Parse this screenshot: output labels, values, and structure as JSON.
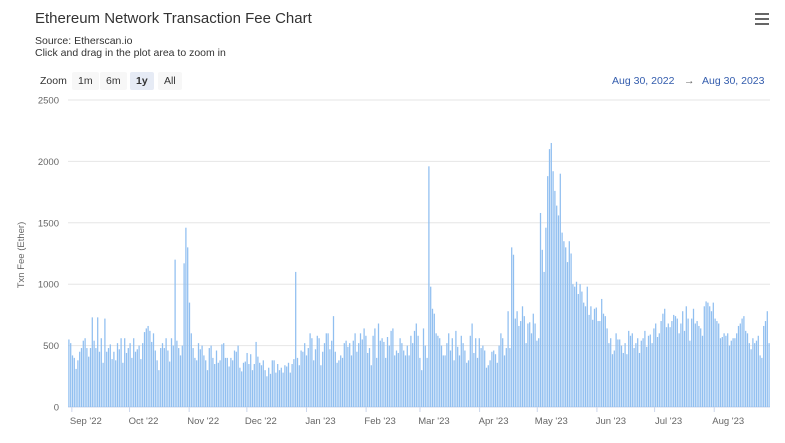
{
  "title": "Ethereum Network Transaction Fee Chart",
  "source": "Source: Etherscan.io",
  "hint": "Click and drag in the plot area to zoom in",
  "menu_icon": "hamburger-menu-icon",
  "zoom": {
    "label": "Zoom",
    "buttons": [
      {
        "label": "1m",
        "active": false
      },
      {
        "label": "6m",
        "active": false
      },
      {
        "label": "1y",
        "active": true
      },
      {
        "label": "All",
        "active": false
      }
    ]
  },
  "range": {
    "from": "Aug 30, 2022",
    "arrow": "→",
    "to": "Aug 30, 2023"
  },
  "colors": {
    "bar": "#90bff0",
    "grid": "#e6e6e6",
    "accent": "#335cad"
  },
  "chart_data": {
    "type": "bar",
    "ylabel": "Txn Fee (Ether)",
    "ylim": [
      0,
      2500
    ],
    "yticks": [
      0,
      500,
      1000,
      1500,
      2000,
      2500
    ],
    "xlim": [
      "2022-08-30",
      "2023-08-30"
    ],
    "xticks": [
      {
        "label": "Sep '22",
        "date": "2022-09-01"
      },
      {
        "label": "Oct '22",
        "date": "2022-10-01"
      },
      {
        "label": "Nov '22",
        "date": "2022-11-01"
      },
      {
        "label": "Dec '22",
        "date": "2022-12-01"
      },
      {
        "label": "Jan '23",
        "date": "2023-01-01"
      },
      {
        "label": "Feb '23",
        "date": "2023-02-01"
      },
      {
        "label": "Mar '23",
        "date": "2023-03-01"
      },
      {
        "label": "Apr '23",
        "date": "2023-04-01"
      },
      {
        "label": "May '23",
        "date": "2023-05-01"
      },
      {
        "label": "Jun '23",
        "date": "2023-06-01"
      },
      {
        "label": "Jul '23",
        "date": "2023-07-01"
      },
      {
        "label": "Aug '23",
        "date": "2023-08-01"
      }
    ],
    "start_date": "2022-08-30",
    "values": [
      550,
      520,
      420,
      400,
      310,
      380,
      450,
      480,
      540,
      560,
      480,
      410,
      480,
      730,
      540,
      480,
      730,
      450,
      560,
      360,
      720,
      450,
      480,
      510,
      390,
      450,
      380,
      520,
      470,
      560,
      360,
      560,
      440,
      480,
      520,
      400,
      560,
      450,
      470,
      500,
      390,
      520,
      610,
      640,
      660,
      620,
      530,
      600,
      460,
      380,
      300,
      480,
      520,
      480,
      560,
      460,
      370,
      560,
      500,
      1200,
      540,
      480,
      420,
      500,
      1170,
      1460,
      1300,
      850,
      600,
      480,
      400,
      380,
      520,
      470,
      500,
      420,
      380,
      300,
      480,
      500,
      400,
      350,
      460,
      360,
      380,
      510,
      520,
      400,
      400,
      330,
      400,
      380,
      460,
      450,
      500,
      320,
      290,
      360,
      370,
      440,
      350,
      430,
      300,
      350,
      530,
      410,
      360,
      340,
      380,
      300,
      250,
      320,
      270,
      380,
      380,
      280,
      350,
      300,
      320,
      280,
      340,
      330,
      360,
      280,
      350,
      390,
      1100,
      400,
      340,
      460,
      450,
      520,
      420,
      480,
      600,
      560,
      380,
      470,
      580,
      560,
      340,
      450,
      520,
      600,
      600,
      470,
      540,
      740,
      450,
      360,
      380,
      420,
      400,
      520,
      540,
      490,
      520,
      420,
      540,
      600,
      450,
      520,
      600,
      550,
      640,
      580,
      440,
      480,
      340,
      580,
      640,
      400,
      680,
      540,
      560,
      530,
      400,
      570,
      500,
      620,
      640,
      420,
      460,
      440,
      560,
      520,
      460,
      420,
      500,
      420,
      580,
      520,
      620,
      680,
      580,
      400,
      300,
      640,
      500,
      400,
      1960,
      980,
      800,
      760,
      600,
      580,
      560,
      500,
      420,
      420,
      520,
      600,
      460,
      560,
      380,
      620,
      490,
      420,
      580,
      520,
      460,
      360,
      380,
      580,
      680,
      440,
      560,
      400,
      560,
      480,
      500,
      460,
      320,
      340,
      380,
      450,
      460,
      430,
      360,
      500,
      600,
      560,
      420,
      480,
      780,
      480,
      1300,
      1240,
      720,
      780,
      660,
      700,
      820,
      740,
      520,
      680,
      690,
      600,
      760,
      680,
      540,
      560,
      1580,
      1280,
      1100,
      1460,
      1880,
      2100,
      2150,
      1920,
      1760,
      1640,
      1560,
      1900,
      1420,
      1350,
      1300,
      1180,
      1350,
      1250,
      1000,
      980,
      1020,
      920,
      1000,
      940,
      850,
      820,
      980,
      750,
      820,
      710,
      800,
      810,
      700,
      700,
      880,
      760,
      740,
      640,
      520,
      560,
      430,
      460,
      600,
      550,
      550,
      500,
      440,
      520,
      430,
      620,
      580,
      600,
      480,
      520,
      560,
      440,
      540,
      560,
      620,
      490,
      580,
      590,
      520,
      640,
      680,
      570,
      600,
      700,
      760,
      800,
      650,
      680,
      650,
      700,
      750,
      740,
      720,
      600,
      680,
      780,
      620,
      820,
      720,
      540,
      720,
      800,
      680,
      700,
      660,
      640,
      580,
      820,
      860,
      850,
      820,
      780,
      850,
      720,
      700,
      680,
      560,
      570,
      600,
      580,
      600,
      500,
      540,
      560,
      560,
      600,
      660,
      680,
      720,
      740,
      620,
      600,
      520,
      470,
      560,
      520,
      540,
      580,
      420,
      400,
      660,
      700,
      780,
      520
    ]
  }
}
